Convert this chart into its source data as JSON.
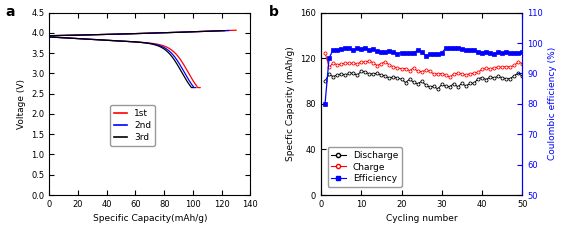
{
  "panel_a": {
    "xlabel": "Specific Capacity(mAh/g)",
    "ylabel": "Voltage (V)",
    "label": "a",
    "xlim": [
      0,
      140
    ],
    "ylim": [
      0.0,
      4.5
    ],
    "yticks": [
      0.0,
      0.5,
      1.0,
      1.5,
      2.0,
      2.5,
      3.0,
      3.5,
      4.0,
      4.5
    ],
    "xticks": [
      0,
      20,
      40,
      60,
      80,
      100,
      120,
      140
    ],
    "legend": [
      "1st",
      "2nd",
      "3rd"
    ],
    "colors": [
      "red",
      "blue",
      "black"
    ],
    "discharge_cap_max": [
      105,
      102,
      100
    ],
    "charge_cap_max": [
      130,
      125,
      122
    ]
  },
  "panel_b": {
    "xlabel": "Cycling number",
    "ylabel_left": "Specfic Capacity (mAh/g)",
    "ylabel_right": "Coulombic efficiency (%)",
    "label": "b",
    "xlim": [
      0,
      50
    ],
    "ylim_left": [
      0,
      160
    ],
    "ylim_right": [
      50,
      110
    ],
    "yticks_left": [
      0,
      40,
      80,
      120,
      160
    ],
    "yticks_right": [
      50,
      60,
      70,
      80,
      90,
      100,
      110
    ],
    "xticks": [
      0,
      10,
      20,
      30,
      40,
      50
    ],
    "legend": [
      "Discharge",
      "Charge",
      "Efficiency"
    ],
    "colors": [
      "black",
      "red",
      "blue"
    ]
  }
}
